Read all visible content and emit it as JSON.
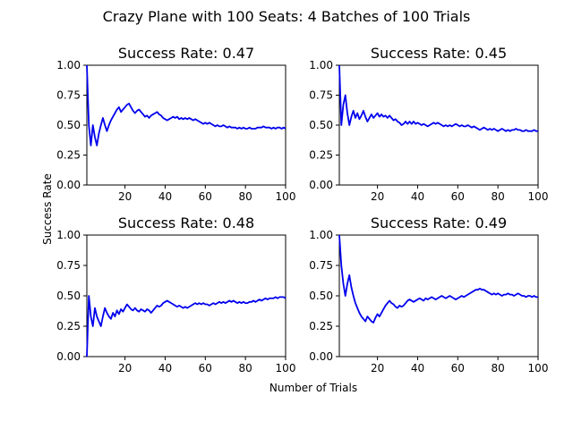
{
  "suptitle": "Crazy Plane with 100 Seats: 4 Batches of 100 Trials",
  "xlabel": "Number of Trials",
  "ylabel": "Success Rate",
  "line_color": "#0000ee",
  "chart_data": [
    {
      "type": "line",
      "title": "Success Rate: 0.47",
      "xlim": [
        1,
        100
      ],
      "ylim": [
        0,
        1
      ],
      "xticks": [
        "20",
        "40",
        "60",
        "80",
        "100"
      ],
      "yticks": [
        "0.00",
        "0.25",
        "0.50",
        "0.75",
        "1.00"
      ],
      "x": [
        1,
        2,
        3,
        4,
        5,
        6,
        7,
        8,
        9,
        10,
        11,
        12,
        13,
        14,
        15,
        16,
        17,
        18,
        19,
        20,
        21,
        22,
        23,
        24,
        25,
        26,
        27,
        28,
        29,
        30,
        31,
        32,
        33,
        34,
        35,
        36,
        37,
        38,
        39,
        40,
        41,
        42,
        43,
        44,
        45,
        46,
        47,
        48,
        49,
        50,
        51,
        52,
        53,
        54,
        55,
        56,
        57,
        58,
        59,
        60,
        61,
        62,
        63,
        64,
        65,
        66,
        67,
        68,
        69,
        70,
        71,
        72,
        73,
        74,
        75,
        76,
        77,
        78,
        79,
        80,
        81,
        82,
        83,
        84,
        85,
        86,
        87,
        88,
        89,
        90,
        91,
        92,
        93,
        94,
        95,
        96,
        97,
        98,
        99,
        100
      ],
      "y": [
        1.0,
        0.5,
        0.33,
        0.5,
        0.4,
        0.33,
        0.43,
        0.5,
        0.56,
        0.5,
        0.45,
        0.5,
        0.54,
        0.57,
        0.6,
        0.63,
        0.65,
        0.61,
        0.63,
        0.65,
        0.67,
        0.68,
        0.65,
        0.62,
        0.6,
        0.62,
        0.63,
        0.61,
        0.59,
        0.57,
        0.58,
        0.56,
        0.58,
        0.59,
        0.6,
        0.61,
        0.59,
        0.58,
        0.56,
        0.55,
        0.54,
        0.55,
        0.56,
        0.57,
        0.56,
        0.57,
        0.55,
        0.56,
        0.55,
        0.56,
        0.55,
        0.56,
        0.55,
        0.54,
        0.55,
        0.54,
        0.53,
        0.52,
        0.51,
        0.52,
        0.51,
        0.52,
        0.51,
        0.5,
        0.49,
        0.5,
        0.49,
        0.49,
        0.5,
        0.49,
        0.48,
        0.49,
        0.48,
        0.48,
        0.48,
        0.47,
        0.48,
        0.47,
        0.48,
        0.47,
        0.47,
        0.48,
        0.47,
        0.47,
        0.47,
        0.48,
        0.48,
        0.48,
        0.49,
        0.48,
        0.48,
        0.48,
        0.47,
        0.48,
        0.47,
        0.48,
        0.48,
        0.47,
        0.48,
        0.47
      ]
    },
    {
      "type": "line",
      "title": "Success Rate: 0.45",
      "xlim": [
        1,
        100
      ],
      "ylim": [
        0,
        1
      ],
      "xticks": [
        "20",
        "40",
        "60",
        "80",
        "100"
      ],
      "yticks": [
        "0.00",
        "0.25",
        "0.50",
        "0.75",
        "1.00"
      ],
      "x": [
        1,
        2,
        3,
        4,
        5,
        6,
        7,
        8,
        9,
        10,
        11,
        12,
        13,
        14,
        15,
        16,
        17,
        18,
        19,
        20,
        21,
        22,
        23,
        24,
        25,
        26,
        27,
        28,
        29,
        30,
        31,
        32,
        33,
        34,
        35,
        36,
        37,
        38,
        39,
        40,
        41,
        42,
        43,
        44,
        45,
        46,
        47,
        48,
        49,
        50,
        51,
        52,
        53,
        54,
        55,
        56,
        57,
        58,
        59,
        60,
        61,
        62,
        63,
        64,
        65,
        66,
        67,
        68,
        69,
        70,
        71,
        72,
        73,
        74,
        75,
        76,
        77,
        78,
        79,
        80,
        81,
        82,
        83,
        84,
        85,
        86,
        87,
        88,
        89,
        90,
        91,
        92,
        93,
        94,
        95,
        96,
        97,
        98,
        99,
        100
      ],
      "y": [
        1.0,
        0.5,
        0.67,
        0.75,
        0.6,
        0.5,
        0.57,
        0.62,
        0.56,
        0.6,
        0.55,
        0.58,
        0.62,
        0.57,
        0.53,
        0.56,
        0.59,
        0.56,
        0.58,
        0.6,
        0.57,
        0.59,
        0.57,
        0.58,
        0.56,
        0.58,
        0.56,
        0.54,
        0.55,
        0.53,
        0.52,
        0.5,
        0.51,
        0.53,
        0.51,
        0.53,
        0.51,
        0.53,
        0.51,
        0.52,
        0.51,
        0.5,
        0.51,
        0.5,
        0.49,
        0.5,
        0.51,
        0.52,
        0.51,
        0.52,
        0.51,
        0.5,
        0.49,
        0.5,
        0.49,
        0.5,
        0.49,
        0.5,
        0.51,
        0.5,
        0.49,
        0.5,
        0.49,
        0.49,
        0.5,
        0.49,
        0.48,
        0.49,
        0.48,
        0.47,
        0.46,
        0.47,
        0.48,
        0.47,
        0.46,
        0.47,
        0.46,
        0.47,
        0.46,
        0.45,
        0.46,
        0.47,
        0.46,
        0.45,
        0.46,
        0.45,
        0.46,
        0.46,
        0.47,
        0.46,
        0.46,
        0.45,
        0.45,
        0.46,
        0.45,
        0.45,
        0.45,
        0.46,
        0.45,
        0.45
      ]
    },
    {
      "type": "line",
      "title": "Success Rate: 0.48",
      "xlim": [
        1,
        100
      ],
      "ylim": [
        0,
        1
      ],
      "xticks": [
        "20",
        "40",
        "60",
        "80",
        "100"
      ],
      "yticks": [
        "0.00",
        "0.25",
        "0.50",
        "0.75",
        "1.00"
      ],
      "x": [
        1,
        2,
        3,
        4,
        5,
        6,
        7,
        8,
        9,
        10,
        11,
        12,
        13,
        14,
        15,
        16,
        17,
        18,
        19,
        20,
        21,
        22,
        23,
        24,
        25,
        26,
        27,
        28,
        29,
        30,
        31,
        32,
        33,
        34,
        35,
        36,
        37,
        38,
        39,
        40,
        41,
        42,
        43,
        44,
        45,
        46,
        47,
        48,
        49,
        50,
        51,
        52,
        53,
        54,
        55,
        56,
        57,
        58,
        59,
        60,
        61,
        62,
        63,
        64,
        65,
        66,
        67,
        68,
        69,
        70,
        71,
        72,
        73,
        74,
        75,
        76,
        77,
        78,
        79,
        80,
        81,
        82,
        83,
        84,
        85,
        86,
        87,
        88,
        89,
        90,
        91,
        92,
        93,
        94,
        95,
        96,
        97,
        98,
        99,
        100
      ],
      "y": [
        0.0,
        0.5,
        0.33,
        0.25,
        0.4,
        0.33,
        0.29,
        0.25,
        0.33,
        0.4,
        0.36,
        0.33,
        0.31,
        0.36,
        0.33,
        0.38,
        0.35,
        0.39,
        0.37,
        0.4,
        0.43,
        0.41,
        0.39,
        0.38,
        0.4,
        0.38,
        0.37,
        0.39,
        0.38,
        0.37,
        0.39,
        0.38,
        0.36,
        0.38,
        0.4,
        0.42,
        0.41,
        0.42,
        0.44,
        0.45,
        0.46,
        0.45,
        0.44,
        0.43,
        0.42,
        0.41,
        0.42,
        0.41,
        0.4,
        0.41,
        0.4,
        0.41,
        0.42,
        0.43,
        0.44,
        0.43,
        0.44,
        0.43,
        0.44,
        0.43,
        0.43,
        0.42,
        0.43,
        0.44,
        0.43,
        0.44,
        0.45,
        0.44,
        0.45,
        0.44,
        0.45,
        0.46,
        0.45,
        0.46,
        0.45,
        0.44,
        0.45,
        0.44,
        0.45,
        0.44,
        0.44,
        0.45,
        0.45,
        0.46,
        0.45,
        0.46,
        0.47,
        0.46,
        0.47,
        0.48,
        0.47,
        0.48,
        0.48,
        0.48,
        0.49,
        0.48,
        0.49,
        0.49,
        0.49,
        0.48
      ]
    },
    {
      "type": "line",
      "title": "Success Rate: 0.49",
      "xlim": [
        1,
        100
      ],
      "ylim": [
        0,
        1
      ],
      "xticks": [
        "20",
        "40",
        "60",
        "80",
        "100"
      ],
      "yticks": [
        "0.00",
        "0.25",
        "0.50",
        "0.75",
        "1.00"
      ],
      "x": [
        1,
        2,
        3,
        4,
        5,
        6,
        7,
        8,
        9,
        10,
        11,
        12,
        13,
        14,
        15,
        16,
        17,
        18,
        19,
        20,
        21,
        22,
        23,
        24,
        25,
        26,
        27,
        28,
        29,
        30,
        31,
        32,
        33,
        34,
        35,
        36,
        37,
        38,
        39,
        40,
        41,
        42,
        43,
        44,
        45,
        46,
        47,
        48,
        49,
        50,
        51,
        52,
        53,
        54,
        55,
        56,
        57,
        58,
        59,
        60,
        61,
        62,
        63,
        64,
        65,
        66,
        67,
        68,
        69,
        70,
        71,
        72,
        73,
        74,
        75,
        76,
        77,
        78,
        79,
        80,
        81,
        82,
        83,
        84,
        85,
        86,
        87,
        88,
        89,
        90,
        91,
        92,
        93,
        94,
        95,
        96,
        97,
        98,
        99,
        100
      ],
      "y": [
        1.0,
        0.75,
        0.6,
        0.5,
        0.6,
        0.67,
        0.57,
        0.5,
        0.44,
        0.4,
        0.36,
        0.33,
        0.31,
        0.29,
        0.33,
        0.31,
        0.29,
        0.28,
        0.32,
        0.35,
        0.33,
        0.36,
        0.39,
        0.42,
        0.44,
        0.46,
        0.44,
        0.43,
        0.41,
        0.4,
        0.42,
        0.41,
        0.42,
        0.44,
        0.46,
        0.47,
        0.46,
        0.45,
        0.46,
        0.47,
        0.48,
        0.47,
        0.46,
        0.48,
        0.47,
        0.48,
        0.49,
        0.48,
        0.47,
        0.48,
        0.49,
        0.5,
        0.49,
        0.48,
        0.49,
        0.5,
        0.49,
        0.48,
        0.47,
        0.48,
        0.49,
        0.5,
        0.49,
        0.5,
        0.51,
        0.52,
        0.53,
        0.54,
        0.55,
        0.55,
        0.56,
        0.55,
        0.55,
        0.54,
        0.53,
        0.52,
        0.51,
        0.52,
        0.51,
        0.52,
        0.51,
        0.5,
        0.51,
        0.51,
        0.52,
        0.51,
        0.51,
        0.5,
        0.51,
        0.52,
        0.51,
        0.5,
        0.5,
        0.49,
        0.5,
        0.5,
        0.49,
        0.5,
        0.49,
        0.49
      ]
    }
  ]
}
